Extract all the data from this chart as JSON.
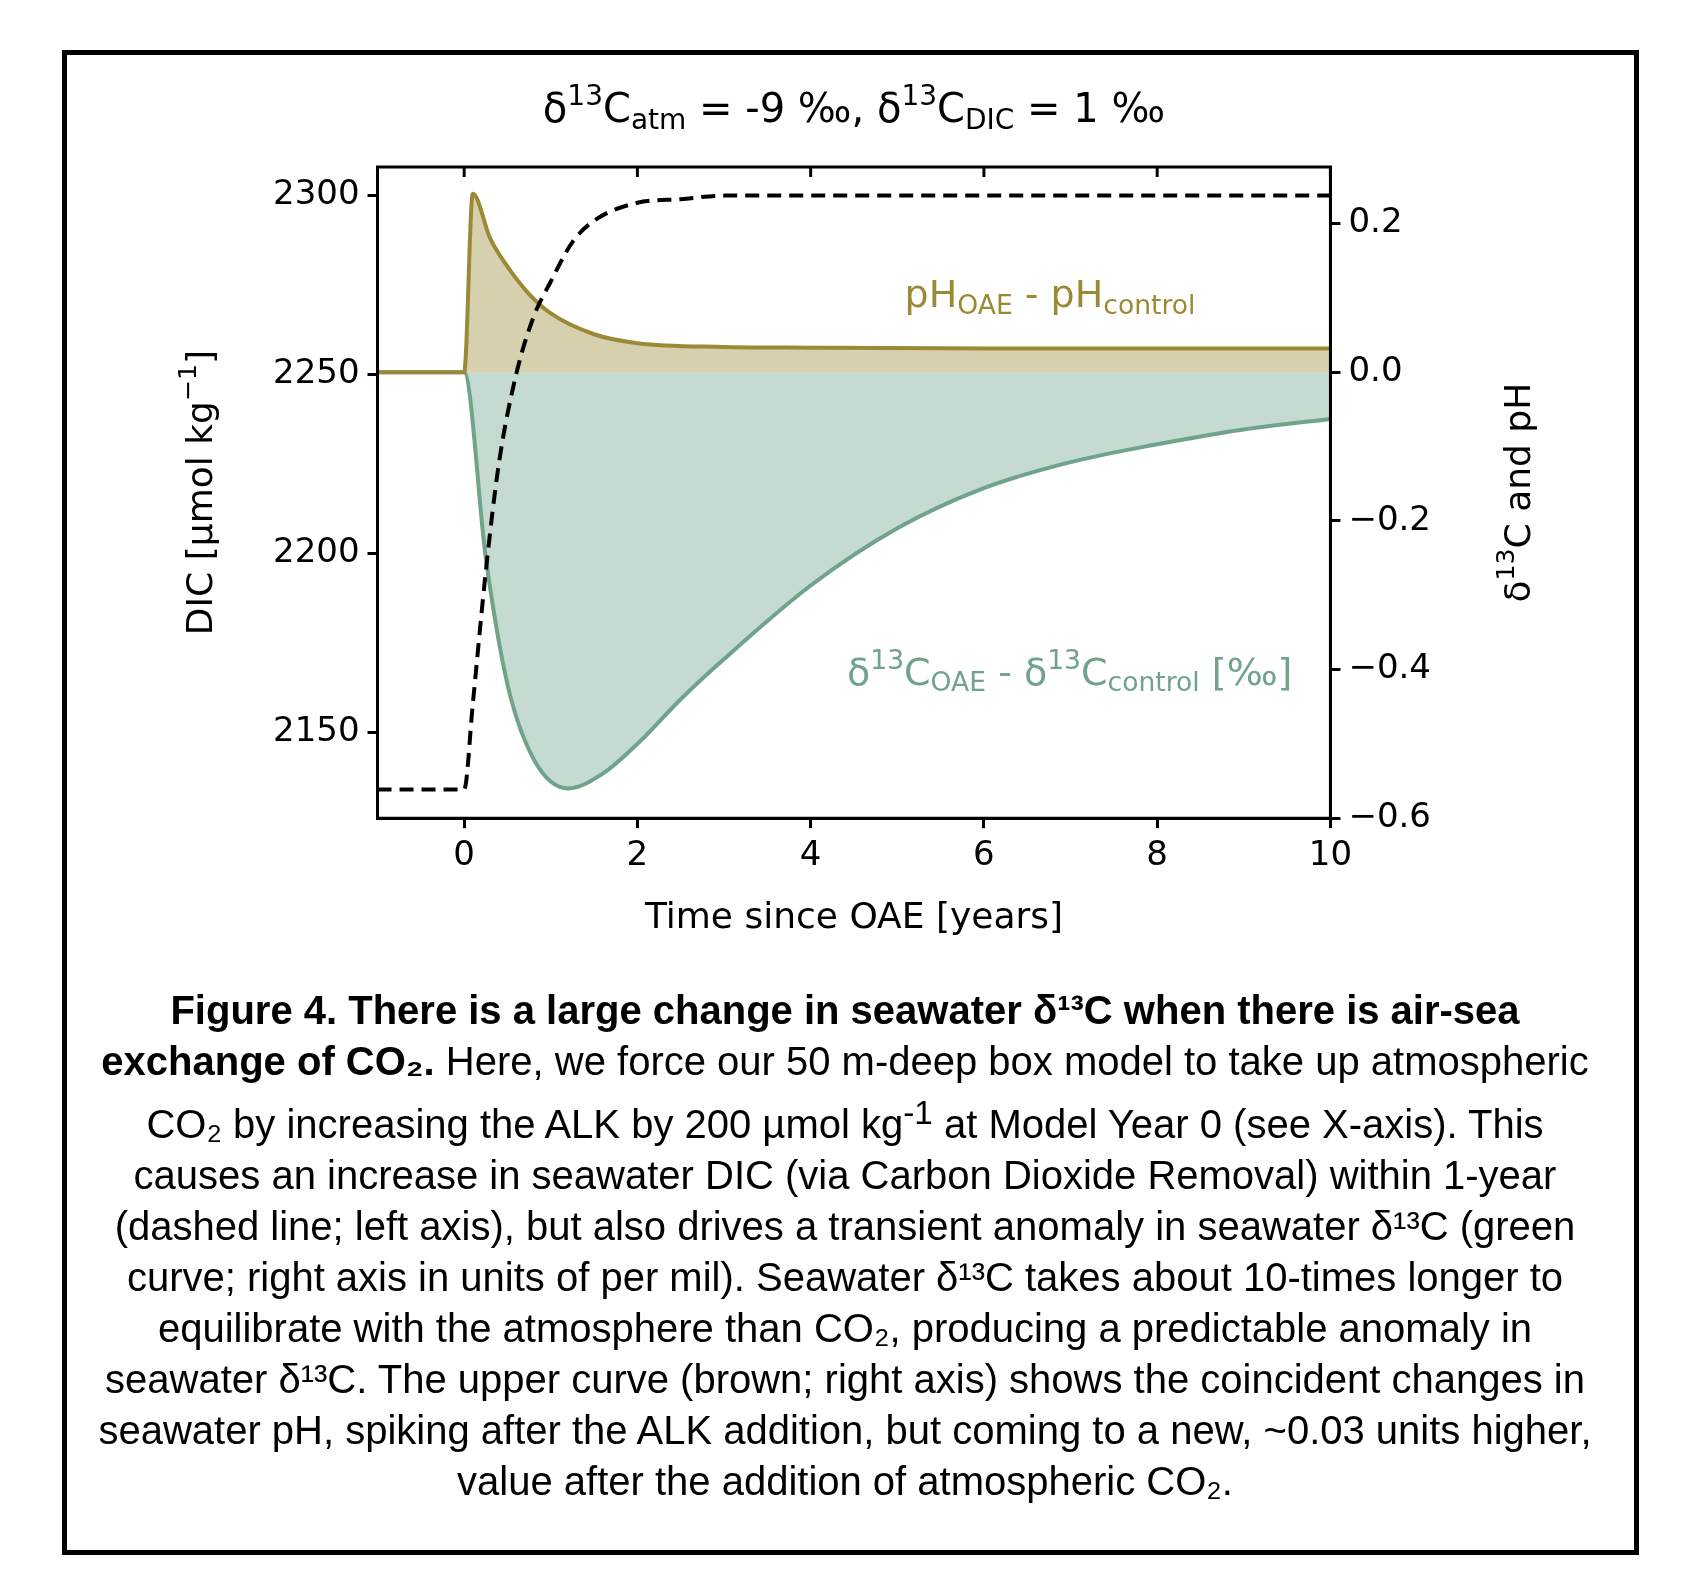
{
  "chart_data": {
    "type": "line",
    "title": "δ$^{13}$C$_{atm}$ = -9 ‰, δ$^{13}$C$_{DIC}$ = 1 ‰",
    "xlabel": "Time since OAE [years]",
    "ylabel": "DIC [µmol kg$^{−1}$]",
    "y2label": "δ$^{13}$C and pH",
    "xlim": [
      -1,
      10
    ],
    "xticks": [
      0,
      2,
      4,
      6,
      8,
      10
    ],
    "ylim": [
      2126,
      2308
    ],
    "yticks": [
      2150,
      2200,
      2250,
      2300
    ],
    "y2lim": [
      -0.6,
      0.276
    ],
    "y2ticks": [
      {
        "value": -0.6,
        "label": "−0.6"
      },
      {
        "value": -0.4,
        "label": "−0.4"
      },
      {
        "value": -0.2,
        "label": "−0.2"
      },
      {
        "value": 0,
        "label": "0.0"
      },
      {
        "value": 0.2,
        "label": "0.2"
      }
    ],
    "grid": false,
    "legend": false,
    "marker": "none",
    "series": [
      {
        "type": "line",
        "line_style": "dashed",
        "color": "#000000",
        "x": [
          -1,
          0,
          0.1,
          0.25,
          0.4,
          0.6,
          0.8,
          1,
          1.25,
          1.5,
          2,
          2.5,
          3,
          4,
          6,
          8,
          10
        ],
        "values": [
          2134,
          2134,
          2158,
          2195,
          2225,
          2250,
          2266,
          2276,
          2287,
          2293,
          2298,
          2299,
          2300,
          2300,
          2300,
          2300,
          2300
        ]
      },
      {
        "type": "area",
        "axis": "y2",
        "name": "pH$_{OAE}$ - pH$_{control}$",
        "color": "#9a8a35",
        "x": [
          -1,
          0,
          0.1,
          0.3,
          0.5,
          0.75,
          1,
          1.5,
          2,
          3,
          4,
          6,
          10
        ],
        "values": [
          0,
          0,
          0.24,
          0.18,
          0.142,
          0.105,
          0.079,
          0.051,
          0.039,
          0.034,
          0.033,
          0.032,
          0.032
        ]
      },
      {
        "type": "area",
        "axis": "y2",
        "name": "δ$^{13}$C$_{OAE}$ - δ$^{13}$C$_{control}$ [‰]",
        "color": "#6fa38a",
        "x": [
          -1,
          0,
          0.25,
          0.5,
          0.8,
          1.2,
          1.6,
          2,
          2.5,
          3,
          4,
          5,
          6,
          7,
          8,
          9,
          10
        ],
        "values": [
          0,
          0,
          -0.25,
          -0.42,
          -0.52,
          -0.56,
          -0.54,
          -0.5,
          -0.44,
          -0.386,
          -0.287,
          -0.21,
          -0.156,
          -0.121,
          -0.097,
          -0.077,
          -0.063
        ]
      }
    ],
    "annotations": [
      "Figure 4. There is a large change in seawater δ¹³C when there is air-sea exchange of CO₂.",
      "Here, we force our 50 m-deep box model to take up atmospheric CO₂ by increasing the ALK by 200 µmol kg$^{-1}$ at Model Year 0 (see X-axis). This causes an increase in seawater DIC (via Carbon Dioxide Removal) within 1-year (dashed line; left axis), but also drives a transient anomaly in seawater δ¹³C (green curve; right axis in units of per mil). Seawater δ¹³C takes about 10-times longer to equilibrate with the atmosphere than CO₂, producing a predictable anomaly in seawater δ¹³C. The upper curve (brown; right axis) shows the coincident changes in seawater pH, spiking after the ALK addition, but coming to a new, ~0.03 units higher, value after the addition of atmospheric CO₂."
    ]
  }
}
